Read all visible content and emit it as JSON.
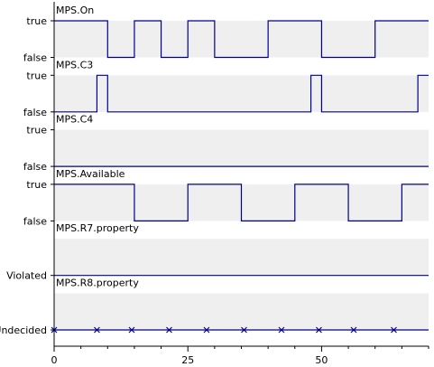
{
  "colors": {
    "trace": "#00008b",
    "band": "#efefef",
    "background": "#ffffff",
    "text": "#000000"
  },
  "chart_data": {
    "type": "line",
    "subtype": "step-timing",
    "x_range": [
      0,
      70
    ],
    "x_ticks": [
      0,
      25,
      50
    ],
    "tracks": [
      {
        "name": "MPS.On",
        "high_label": "true",
        "low_label": "false",
        "segments": [
          {
            "from": 0,
            "to": 10,
            "state": "high"
          },
          {
            "from": 10,
            "to": 15,
            "state": "low"
          },
          {
            "from": 15,
            "to": 20,
            "state": "high"
          },
          {
            "from": 20,
            "to": 25,
            "state": "low"
          },
          {
            "from": 25,
            "to": 30,
            "state": "high"
          },
          {
            "from": 30,
            "to": 40,
            "state": "low"
          },
          {
            "from": 40,
            "to": 50,
            "state": "high"
          },
          {
            "from": 50,
            "to": 60,
            "state": "low"
          },
          {
            "from": 60,
            "to": 70,
            "state": "high"
          }
        ]
      },
      {
        "name": "MPS.C3",
        "high_label": "true",
        "low_label": "false",
        "segments": [
          {
            "from": 0,
            "to": 8,
            "state": "low"
          },
          {
            "from": 8,
            "to": 10,
            "state": "high"
          },
          {
            "from": 10,
            "to": 48,
            "state": "low"
          },
          {
            "from": 48,
            "to": 50,
            "state": "high"
          },
          {
            "from": 50,
            "to": 68,
            "state": "low"
          },
          {
            "from": 68,
            "to": 70,
            "state": "high"
          }
        ]
      },
      {
        "name": "MPS.C4",
        "high_label": "true",
        "low_label": "false",
        "segments": [
          {
            "from": 0,
            "to": 70,
            "state": "low"
          }
        ]
      },
      {
        "name": "MPS.Available",
        "high_label": "true",
        "low_label": "false",
        "segments": [
          {
            "from": 0,
            "to": 15,
            "state": "high"
          },
          {
            "from": 15,
            "to": 25,
            "state": "low"
          },
          {
            "from": 25,
            "to": 35,
            "state": "high"
          },
          {
            "from": 35,
            "to": 45,
            "state": "low"
          },
          {
            "from": 45,
            "to": 55,
            "state": "high"
          },
          {
            "from": 55,
            "to": 65,
            "state": "low"
          },
          {
            "from": 65,
            "to": 70,
            "state": "high"
          }
        ]
      },
      {
        "name": "MPS.R7.property",
        "high_label": "",
        "low_label": "Violated",
        "segments": [
          {
            "from": 0,
            "to": 70,
            "state": "low"
          }
        ]
      },
      {
        "name": "MPS.R8.property",
        "high_label": "",
        "low_label": "Undecided",
        "segments": [
          {
            "from": 0,
            "to": 70,
            "state": "low"
          }
        ],
        "markers": [
          0,
          8,
          14.5,
          21.5,
          28.5,
          35.5,
          42.5,
          49.5,
          56,
          63.5
        ]
      }
    ]
  }
}
